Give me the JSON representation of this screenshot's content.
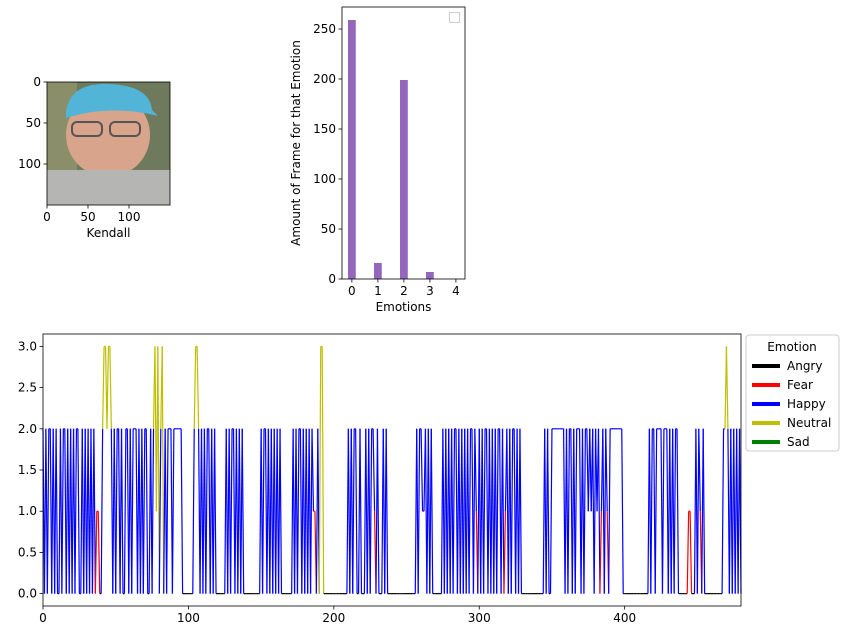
{
  "chart_data": [
    {
      "type": "image",
      "xlabel": "Kendall",
      "xlim": [
        0,
        150
      ],
      "ylim": [
        150,
        0
      ],
      "xticks": [
        0,
        50,
        100
      ],
      "yticks": [
        0,
        50,
        100
      ]
    },
    {
      "type": "bar",
      "xlabel": "Emotions",
      "ylabel": "Amount of Frame for that Emotion",
      "x": [
        0,
        1,
        2,
        3,
        4
      ],
      "values": [
        259,
        16,
        199,
        7,
        0
      ],
      "color": "#9467bd",
      "xlim": [
        -0.38,
        4.35
      ],
      "ylim": [
        0,
        272
      ],
      "xticks": [
        0,
        1,
        2,
        3,
        4
      ],
      "yticks": [
        0,
        50,
        100,
        150,
        200,
        250
      ]
    },
    {
      "type": "line",
      "legend_title": "Emotion",
      "legend": "outside right",
      "emotions": [
        {
          "name": "Angry",
          "color": "#000000"
        },
        {
          "name": "Fear",
          "color": "#ff0000"
        },
        {
          "name": "Happy",
          "color": "#0000ff"
        },
        {
          "name": "Neutral",
          "color": "#bfbf00"
        },
        {
          "name": "Sad",
          "color": "#008000"
        }
      ],
      "values": [
        2,
        0,
        2,
        0,
        2,
        2,
        0,
        2,
        0,
        2,
        0,
        0,
        2,
        0,
        2,
        2,
        0,
        2,
        0,
        2,
        0,
        2,
        0,
        2,
        2,
        0,
        0,
        2,
        0,
        2,
        0,
        2,
        0,
        2,
        0,
        2,
        0,
        1,
        1,
        0,
        0,
        2,
        3,
        3,
        2,
        3,
        3,
        2,
        0,
        2,
        0,
        2,
        2,
        0,
        2,
        0,
        0,
        2,
        2,
        0,
        2,
        0,
        2,
        2,
        2,
        0,
        2,
        0,
        2,
        0,
        2,
        2,
        0,
        0,
        2,
        0,
        2,
        3,
        1,
        3,
        0,
        2,
        3,
        0,
        2,
        0,
        2,
        2,
        2,
        0,
        2,
        2,
        2,
        2,
        2,
        2,
        0,
        0,
        0,
        0,
        0,
        0,
        0,
        0,
        2,
        3,
        3,
        2,
        0,
        2,
        0,
        2,
        0,
        2,
        2,
        0,
        2,
        0,
        2,
        0,
        0,
        0,
        0,
        0,
        0,
        0,
        2,
        0,
        2,
        0,
        2,
        2,
        0,
        2,
        0,
        2,
        0,
        2,
        0,
        0,
        0,
        0,
        0,
        0,
        0,
        0,
        0,
        0,
        0,
        0,
        2,
        0,
        2,
        2,
        0,
        2,
        0,
        2,
        0,
        2,
        0,
        2,
        0,
        2,
        0,
        0,
        0,
        0,
        0,
        0,
        0,
        0,
        2,
        0,
        2,
        0,
        2,
        2,
        0,
        2,
        0,
        2,
        0,
        2,
        0,
        2,
        1,
        1,
        0,
        2,
        0,
        3,
        3,
        0,
        0,
        0,
        0,
        0,
        0,
        0,
        0,
        0,
        0,
        0,
        0,
        0,
        0,
        0,
        0,
        0,
        2,
        0,
        2,
        0,
        2,
        2,
        0,
        0,
        2,
        0,
        0,
        0,
        2,
        0,
        2,
        0,
        2,
        2,
        1,
        0,
        2,
        0,
        0,
        0,
        2,
        0,
        2,
        0,
        0,
        0,
        0,
        0,
        0,
        0,
        0,
        0,
        0,
        0,
        0,
        0,
        0,
        0,
        0,
        0,
        0,
        0,
        0,
        2,
        0,
        2,
        2,
        1,
        1,
        2,
        0,
        2,
        0,
        2,
        0,
        0,
        0,
        0,
        0,
        0,
        0,
        2,
        0,
        2,
        0,
        2,
        0,
        2,
        0,
        2,
        2,
        0,
        2,
        0,
        2,
        0,
        2,
        0,
        2,
        0,
        2,
        2,
        0,
        2,
        1,
        0,
        2,
        0,
        2,
        0,
        2,
        2,
        0,
        2,
        0,
        2,
        0,
        2,
        0,
        2,
        2,
        0,
        2,
        0,
        1,
        2,
        0,
        2,
        0,
        2,
        2,
        0,
        2,
        0,
        2,
        0,
        0,
        0,
        0,
        0,
        0,
        0,
        0,
        0,
        0,
        0,
        0,
        0,
        0,
        0,
        0,
        2,
        0,
        2,
        0,
        0,
        2,
        2,
        2,
        2,
        2,
        2,
        2,
        2,
        2,
        0,
        2,
        0,
        2,
        2,
        0,
        2,
        0,
        2,
        2,
        2,
        0,
        2,
        0,
        2,
        2,
        1,
        2,
        1,
        2,
        0,
        2,
        1,
        2,
        0,
        1,
        2,
        0,
        2,
        1,
        0,
        2,
        2,
        2,
        2,
        2,
        2,
        2,
        2,
        2,
        0,
        0,
        0,
        0,
        0,
        0,
        0,
        0,
        0,
        0,
        0,
        0,
        0,
        0,
        0,
        0,
        0,
        0,
        2,
        0,
        2,
        2,
        0,
        2,
        2,
        2,
        2,
        0,
        2,
        2,
        2,
        0,
        2,
        0,
        2,
        0,
        2,
        2,
        0,
        0,
        0,
        0,
        0,
        0,
        0,
        1,
        1,
        0,
        0,
        0,
        2,
        0,
        2,
        1,
        0,
        2,
        0,
        0,
        0,
        0,
        0,
        0,
        0,
        0,
        0,
        0,
        0,
        0,
        0,
        2,
        2,
        3,
        2,
        0,
        2,
        0,
        2,
        0,
        2,
        0,
        2,
        0
      ],
      "xlim": [
        0,
        480
      ],
      "ylim": [
        -0.15,
        3.15
      ],
      "xticks": [
        0,
        100,
        200,
        300,
        400
      ],
      "yticks": [
        {
          "value": 0,
          "label": "0.0"
        },
        {
          "value": 0.5,
          "label": "0.5"
        },
        {
          "value": 1,
          "label": "1.0"
        },
        {
          "value": 1.5,
          "label": "1.5"
        },
        {
          "value": 2,
          "label": "2.0"
        },
        {
          "value": 2.5,
          "label": "2.5"
        },
        {
          "value": 3,
          "label": "3.0"
        }
      ]
    }
  ]
}
